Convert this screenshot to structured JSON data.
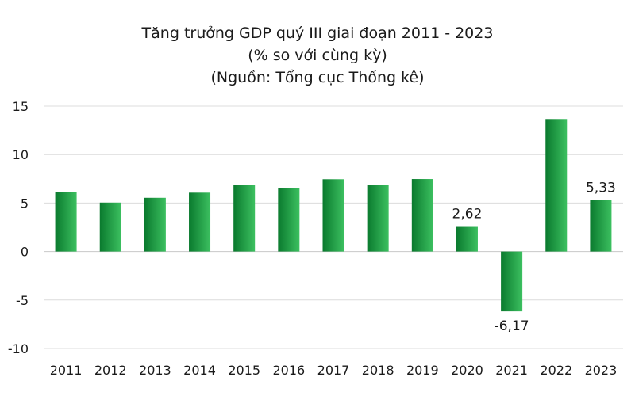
{
  "chart_data": {
    "type": "bar",
    "title_lines": [
      "Tăng trưởng GDP quý III giai đoạn 2011 - 2023",
      "(% so với cùng kỳ)",
      "(Nguồn: Tổng cục Thống kê)"
    ],
    "categories": [
      "2011",
      "2012",
      "2013",
      "2014",
      "2015",
      "2016",
      "2017",
      "2018",
      "2019",
      "2020",
      "2021",
      "2022",
      "2023"
    ],
    "values": [
      6.1,
      5.05,
      5.54,
      6.07,
      6.87,
      6.56,
      7.46,
      6.88,
      7.48,
      2.62,
      -6.17,
      13.67,
      5.33
    ],
    "data_labels": [
      {
        "index": 9,
        "text": "2,62"
      },
      {
        "index": 10,
        "text": "-6,17"
      },
      {
        "index": 12,
        "text": "5,33"
      }
    ],
    "ylim": [
      -10,
      15
    ],
    "yticks": [
      15,
      10,
      5,
      0,
      -5,
      -10
    ],
    "grid": true,
    "bar_color_dark": "#0a7a2e",
    "bar_color_light": "#3cc060"
  }
}
